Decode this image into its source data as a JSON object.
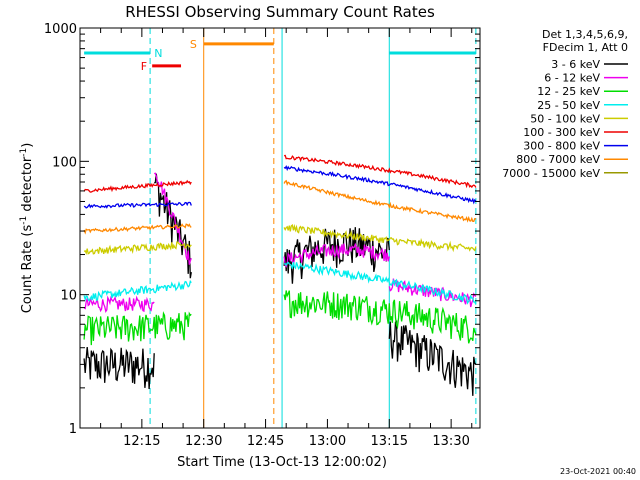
{
  "chart_data": {
    "type": "line",
    "title": "RHESSI Observing Summary Count Rates",
    "xlabel": "Start Time (13-Oct-13 12:00:02)",
    "ylabel_main": "Count Rate (s",
    "ylabel_sup1": "-1",
    "ylabel_mid": " detector",
    "ylabel_sup2": "-1",
    "ylabel_end": ")",
    "yscale": "log",
    "ylim": [
      1,
      1000
    ],
    "xlim_minutes": [
      0,
      97
    ],
    "x_ticks": [
      {
        "label": "12:15",
        "min": 15
      },
      {
        "label": "12:30",
        "min": 30
      },
      {
        "label": "12:45",
        "min": 45
      },
      {
        "label": "13:00",
        "min": 60
      },
      {
        "label": "13:15",
        "min": 75
      },
      {
        "label": "13:30",
        "min": 90
      }
    ],
    "y_ticks": [
      {
        "label": "1",
        "v": 1
      },
      {
        "label": "10",
        "v": 10
      },
      {
        "label": "100",
        "v": 100
      },
      {
        "label": "1000",
        "v": 1000
      }
    ],
    "legend_header": [
      "Det 1,3,4,5,6,9,",
      "FDecim 1, Att 0"
    ],
    "legend_position": "right",
    "series": [
      {
        "name": "3 - 6 keV",
        "color": "#000000",
        "noise": 0.35,
        "segments": [
          {
            "x": [
              1,
              18
            ],
            "y": [
              3,
              3
            ]
          },
          {
            "x": [
              18,
              27
            ],
            "y": [
              70,
              18
            ]
          },
          {
            "x": [
              49.5,
              75
            ],
            "y": [
              17,
              20
            ],
            "mid": 25
          },
          {
            "x": [
              75,
              96
            ],
            "y": [
              5,
              2.5
            ]
          }
        ]
      },
      {
        "name": "6 - 12 keV",
        "color": "#ee00ee",
        "noise": 0.12,
        "segments": [
          {
            "x": [
              1,
              18
            ],
            "y": [
              8.5,
              8.5
            ]
          },
          {
            "x": [
              18,
              27
            ],
            "y": [
              90,
              17
            ]
          },
          {
            "x": [
              49.5,
              75
            ],
            "y": [
              18,
              20
            ],
            "mid": 22
          },
          {
            "x": [
              75,
              96
            ],
            "y": [
              12,
              9
            ]
          }
        ]
      },
      {
        "name": "12 - 25 keV",
        "color": "#00dd00",
        "noise": 0.25,
        "segments": [
          {
            "x": [
              1,
              27
            ],
            "y": [
              5.5,
              6
            ]
          },
          {
            "x": [
              49.5,
              96
            ],
            "y": [
              9,
              5.5
            ],
            "mid": 8
          }
        ]
      },
      {
        "name": "25 - 50 keV",
        "color": "#00eeee",
        "noise": 0.07,
        "segments": [
          {
            "x": [
              1,
              27
            ],
            "y": [
              9.5,
              12
            ]
          },
          {
            "x": [
              49.5,
              96
            ],
            "y": [
              17,
              9
            ],
            "mid": 13
          }
        ]
      },
      {
        "name": "50 - 100 keV",
        "color": "#cccc00",
        "noise": 0.06,
        "segments": [
          {
            "x": [
              1,
              27
            ],
            "y": [
              21,
              24
            ]
          },
          {
            "x": [
              49.5,
              96
            ],
            "y": [
              32,
              22
            ],
            "mid": 26
          }
        ]
      },
      {
        "name": "100 - 300 keV",
        "color": "#ee0000",
        "noise": 0.03,
        "segments": [
          {
            "x": [
              1,
              27
            ],
            "y": [
              60,
              70
            ]
          },
          {
            "x": [
              49.5,
              96
            ],
            "y": [
              108,
              65
            ],
            "mid": 88
          }
        ]
      },
      {
        "name": "300 - 800 keV",
        "color": "#0000ee",
        "noise": 0.03,
        "segments": [
          {
            "x": [
              1,
              27
            ],
            "y": [
              46,
              48
            ]
          },
          {
            "x": [
              49.5,
              96
            ],
            "y": [
              90,
              50
            ],
            "mid": 70
          }
        ]
      },
      {
        "name": "800 - 7000 keV",
        "color": "#ff8800",
        "noise": 0.03,
        "segments": [
          {
            "x": [
              1,
              27
            ],
            "y": [
              30,
              33
            ]
          },
          {
            "x": [
              49.5,
              96
            ],
            "y": [
              70,
              36
            ],
            "mid": 48
          }
        ]
      },
      {
        "name": "7000 - 15000 keV",
        "color": "#999900",
        "noise": 0.0,
        "segments": []
      }
    ],
    "annotations": [
      {
        "type": "flag",
        "label": "N",
        "color": "#00dddd",
        "x": [
          1,
          17
        ],
        "y": 650,
        "label_at": 19
      },
      {
        "type": "flag",
        "label": "F",
        "color": "#ee0000",
        "x": [
          17.5,
          24.5
        ],
        "y": 520,
        "label_at": 15.5
      },
      {
        "type": "flag",
        "label": "S",
        "color": "#ff8800",
        "x": [
          30,
          47
        ],
        "y": 760,
        "label_at": 27.5
      },
      {
        "type": "flag",
        "label": "",
        "color": "#00dddd",
        "x": [
          75,
          96
        ],
        "y": 650
      }
    ],
    "vlines": [
      {
        "min": 0,
        "color": "#00dddd",
        "dash": false
      },
      {
        "min": 17,
        "color": "#00dddd",
        "dash": true
      },
      {
        "min": 30,
        "color": "#ff8800",
        "dash": false
      },
      {
        "min": 47,
        "color": "#ff8800",
        "dash": true
      },
      {
        "min": 49,
        "color": "#00dddd",
        "dash": false
      },
      {
        "min": 75,
        "color": "#00dddd",
        "dash": false
      },
      {
        "min": 96,
        "color": "#00dddd",
        "dash": true
      }
    ]
  },
  "footer": {
    "timestamp": "23-Oct-2021 00:40"
  },
  "colors": {
    "background": "#ffffff",
    "axes": "#000000"
  }
}
